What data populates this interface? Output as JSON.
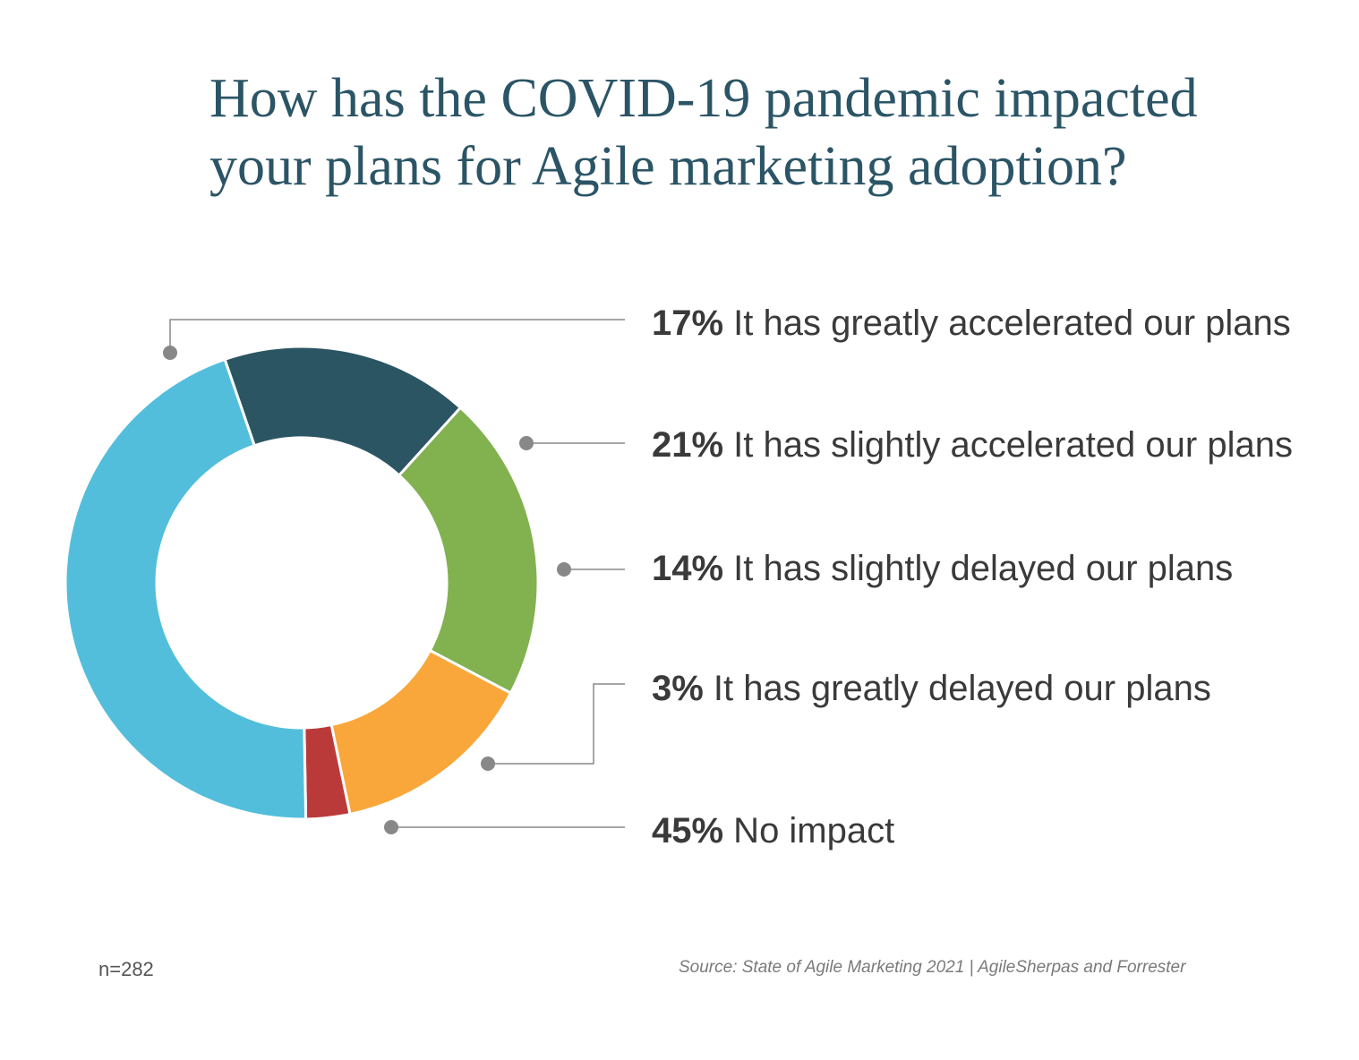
{
  "title": {
    "line1": "How has the COVID-19 pandemic impacted",
    "line2": "your plans for Agile marketing adoption?"
  },
  "chart_data": {
    "type": "pie",
    "donut": true,
    "title": "How has the COVID-19 pandemic impacted your plans for Agile marketing adoption?",
    "slices": [
      {
        "label": "It has greatly accelerated our plans",
        "percent_label": "17%",
        "value": 17,
        "color": "#2b5563"
      },
      {
        "label": "It has slightly accelerated our plans",
        "percent_label": "21%",
        "value": 21,
        "color": "#82b150"
      },
      {
        "label": "It has slightly delayed our plans",
        "percent_label": "14%",
        "value": 14,
        "color": "#f9a73a"
      },
      {
        "label": "It has greatly delayed our plans",
        "percent_label": "3%",
        "value": 3,
        "color": "#ba3a3a"
      },
      {
        "label": "No impact",
        "percent_label": "45%",
        "value": 45,
        "color": "#53bedb"
      }
    ],
    "legend": "right",
    "leader_color": "#888888"
  },
  "footer": {
    "sample_size": "n=282",
    "source": "Source: State of Agile Marketing 2021 | AgileSherpas and Forrester"
  }
}
